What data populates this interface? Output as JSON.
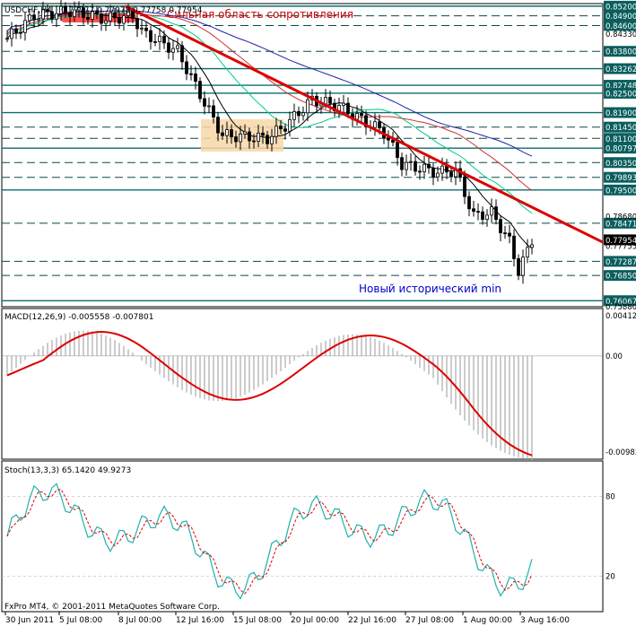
{
  "chart_data": [
    {
      "type": "candlestick",
      "panel": "price",
      "symbol_label": "USDCHF,H4",
      "ohlc_label": "0.77777 0.77978 0.77758 0.77954",
      "ylim": [
        0.7588,
        0.8528
      ],
      "price_levels": [
        {
          "value": 0.852,
          "label": "0.85200",
          "style": "solid"
        },
        {
          "value": 0.849,
          "label": "0.84900",
          "style": "dashed"
        },
        {
          "value": 0.846,
          "label": "0.84600",
          "style": "dashed"
        },
        {
          "value": 0.838,
          "label": "0.83800",
          "style": "dashed"
        },
        {
          "value": 0.83262,
          "label": "0.83262",
          "style": "solid"
        },
        {
          "value": 0.82748,
          "label": "0.82748",
          "style": "solid"
        },
        {
          "value": 0.825,
          "label": "0.82500",
          "style": "solid"
        },
        {
          "value": 0.819,
          "label": "0.81900",
          "style": "solid"
        },
        {
          "value": 0.8145,
          "label": "0.81450",
          "style": "dashed"
        },
        {
          "value": 0.811,
          "label": "0.81100",
          "style": "dashed"
        },
        {
          "value": 0.80797,
          "label": "0.80797",
          "style": "solid"
        },
        {
          "value": 0.8035,
          "label": "0.80350",
          "style": "dashed"
        },
        {
          "value": 0.79893,
          "label": "0.79893",
          "style": "dashed"
        },
        {
          "value": 0.795,
          "label": "0.79500",
          "style": "solid"
        },
        {
          "value": 0.78471,
          "label": "0.78471",
          "style": "dashed"
        },
        {
          "value": 0.77287,
          "label": "0.77287",
          "style": "dashed"
        },
        {
          "value": 0.7685,
          "label": "0.76850",
          "style": "dashed"
        },
        {
          "value": 0.76067,
          "label": "0.76067",
          "style": "solid"
        }
      ],
      "axis_ticks": [
        {
          "value": 0.8433,
          "label": "0.84330"
        },
        {
          "value": 0.7868,
          "label": "0.78680"
        },
        {
          "value": 0.77755,
          "label": "0.77755"
        },
        {
          "value": 0.7588,
          "label": "0.75880"
        }
      ],
      "current_price": {
        "value": 0.77954,
        "label": "0.77954"
      },
      "annotations": [
        {
          "text": "Сильная область сопротивления",
          "color": "#cc0000"
        },
        {
          "text": "Новый исторический min",
          "color": "#0000cc"
        }
      ],
      "trendline": {
        "color": "#dd0000",
        "from": 0.852,
        "to": 0.7788
      }
    },
    {
      "type": "line",
      "panel": "macd",
      "label": "MACD(12,26,9) -0.005558 -0.007801",
      "ylim": [
        -0.00983,
        0.00412
      ],
      "axis_ticks": [
        {
          "value": 0.00412,
          "label": "0.00412"
        },
        {
          "value": 0.0,
          "label": "0.00"
        },
        {
          "value": -0.00983,
          "label": "-0.00983"
        }
      ],
      "signal_color": "#dd0000"
    },
    {
      "type": "line",
      "panel": "stochastic",
      "label": "Stoch(13,3,3) 65.1420 49.9273",
      "ylim": [
        0,
        100
      ],
      "axis_ticks": [
        {
          "value": 80,
          "label": "80"
        },
        {
          "value": 20,
          "label": "20"
        }
      ],
      "main_color": "#20b2aa",
      "signal_color": "#dd0000"
    }
  ],
  "x_axis_labels": [
    "30 Jun 2011",
    "5 Jul 08:00",
    "8 Jul 00:00",
    "12 Jul 16:00",
    "15 Jul 08:00",
    "20 Jul 00:00",
    "22 Jul 16:00",
    "27 Jul 08:00",
    "1 Aug 00:00",
    "3 Aug 16:00"
  ],
  "copyright": "FxPro MT4, © 2001-2011 MetaQuotes Software Corp."
}
